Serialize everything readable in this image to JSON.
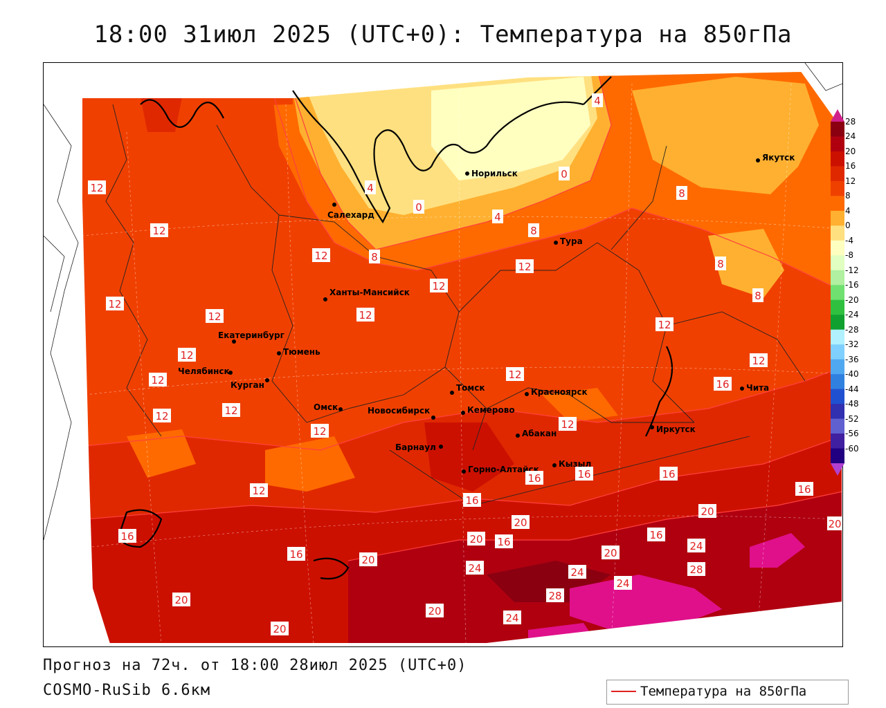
{
  "title": "18:00 31июл 2025 (UTC+0): Температура на 850гПа",
  "forecast_line": "Прогноз на 72ч. от 18:00 28июл 2025 (UTC+0)",
  "model_line": "COSMO-RuSib 6.6км",
  "legend": {
    "label": "Температура на 850гПа",
    "line_color": "#e02020"
  },
  "colorbar": {
    "ticks": [
      "28",
      "24",
      "20",
      "16",
      "12",
      "8",
      "4",
      "0",
      "-4",
      "-8",
      "-12",
      "-16",
      "-20",
      "-24",
      "-28",
      "-32",
      "-36",
      "-40",
      "-44",
      "-48",
      "-52",
      "-56",
      "-60"
    ],
    "colors": [
      "#8b0010",
      "#b00010",
      "#cc1000",
      "#e02800",
      "#f04000",
      "#ff6a00",
      "#ffb030",
      "#ffe080",
      "#ffffc0",
      "#e0ffc0",
      "#b0f0a0",
      "#70e070",
      "#30c040",
      "#10a030",
      "#b0f0ff",
      "#80d0ff",
      "#50a8f0",
      "#3080e0",
      "#2050d0",
      "#3030b0",
      "#6060d0",
      "#4020a0",
      "#200080"
    ]
  },
  "cities": [
    {
      "name": "Норильск"
    },
    {
      "name": "Салехард"
    },
    {
      "name": "Якутск"
    },
    {
      "name": "Тура"
    },
    {
      "name": "Ханты-Мансийск"
    },
    {
      "name": "Екатеринбург"
    },
    {
      "name": "Тюмень"
    },
    {
      "name": "Челябинск"
    },
    {
      "name": "Курган"
    },
    {
      "name": "Омск"
    },
    {
      "name": "Новосибирск"
    },
    {
      "name": "Томск"
    },
    {
      "name": "Кемерово"
    },
    {
      "name": "Красноярск"
    },
    {
      "name": "Барнаул"
    },
    {
      "name": "Абакан"
    },
    {
      "name": "Иркутск"
    },
    {
      "name": "Чита"
    },
    {
      "name": "Горно-Алтайск"
    },
    {
      "name": "Кызыл"
    }
  ],
  "contour_labels": [
    {
      "value": "4"
    },
    {
      "value": "4"
    },
    {
      "value": "0"
    },
    {
      "value": "0"
    },
    {
      "value": "4"
    },
    {
      "value": "8"
    },
    {
      "value": "8"
    },
    {
      "value": "8"
    },
    {
      "value": "8"
    },
    {
      "value": "8"
    },
    {
      "value": "12"
    },
    {
      "value": "12"
    },
    {
      "value": "12"
    },
    {
      "value": "12"
    },
    {
      "value": "12"
    },
    {
      "value": "12"
    },
    {
      "value": "12"
    },
    {
      "value": "12"
    },
    {
      "value": "12"
    },
    {
      "value": "12"
    },
    {
      "value": "12"
    },
    {
      "value": "12"
    },
    {
      "value": "12"
    },
    {
      "value": "12"
    },
    {
      "value": "12"
    },
    {
      "value": "12"
    },
    {
      "value": "12"
    },
    {
      "value": "12"
    },
    {
      "value": "16"
    },
    {
      "value": "16"
    },
    {
      "value": "16"
    },
    {
      "value": "16"
    },
    {
      "value": "16"
    },
    {
      "value": "16"
    },
    {
      "value": "16"
    },
    {
      "value": "16"
    },
    {
      "value": "16"
    },
    {
      "value": "16"
    },
    {
      "value": "20"
    },
    {
      "value": "20"
    },
    {
      "value": "20"
    },
    {
      "value": "20"
    },
    {
      "value": "20"
    },
    {
      "value": "20"
    },
    {
      "value": "20"
    },
    {
      "value": "20"
    },
    {
      "value": "24"
    },
    {
      "value": "24"
    },
    {
      "value": "24"
    },
    {
      "value": "24"
    },
    {
      "value": "24"
    },
    {
      "value": "28"
    },
    {
      "value": "28"
    },
    {
      "value": "20"
    }
  ]
}
